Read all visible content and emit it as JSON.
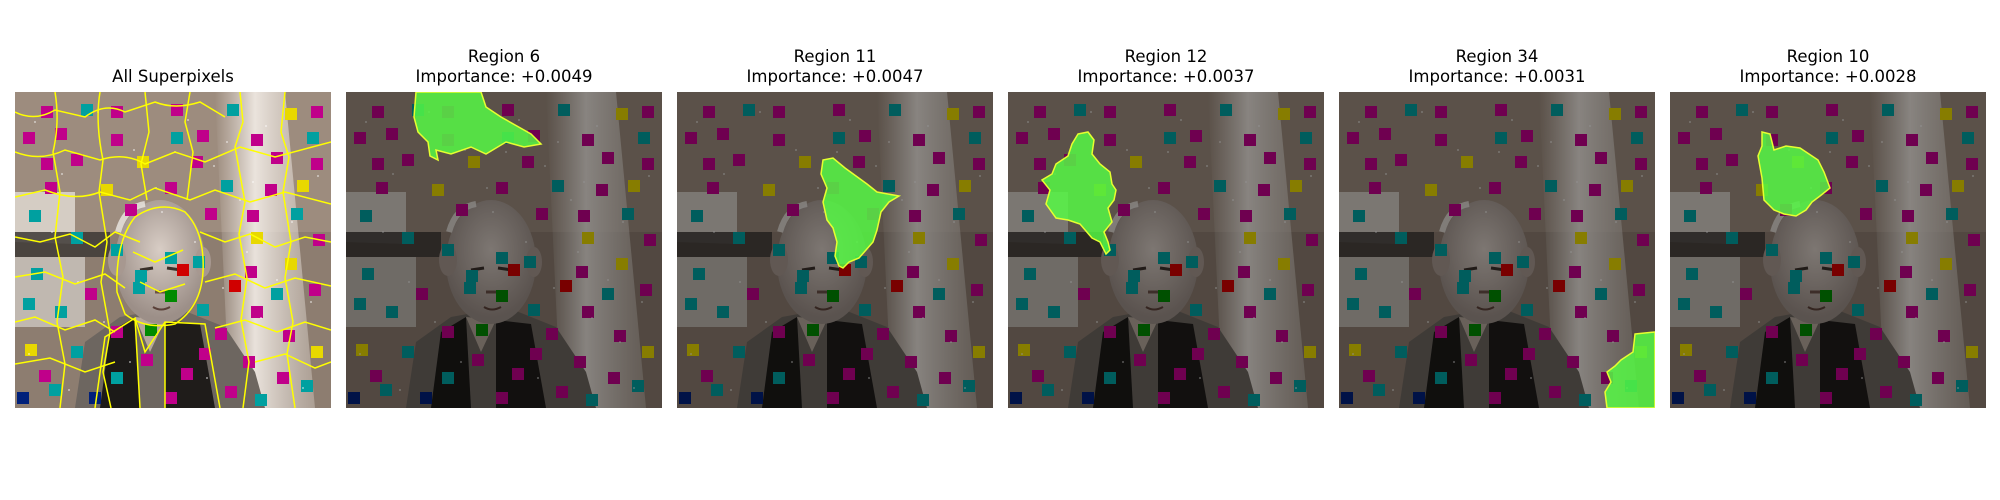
{
  "panels": [
    {
      "title": "",
      "subtitle": "All Superpixels",
      "highlight": "all",
      "highlight_color": "#ffff00"
    },
    {
      "title": "Region 6",
      "subtitle": "Importance: +0.0049",
      "highlight": "region-6",
      "highlight_color": "#55ff44"
    },
    {
      "title": "Region 11",
      "subtitle": "Importance: +0.0047",
      "highlight": "region-11",
      "highlight_color": "#55ff44"
    },
    {
      "title": "Region 12",
      "subtitle": "Importance: +0.0037",
      "highlight": "region-12",
      "highlight_color": "#55ff44"
    },
    {
      "title": "Region 34",
      "subtitle": "Importance: +0.0031",
      "highlight": "region-34",
      "highlight_color": "#55ff44"
    },
    {
      "title": "Region 10",
      "subtitle": "Importance: +0.0028",
      "highlight": "region-10",
      "highlight_color": "#55ff44"
    }
  ],
  "colors": {
    "boundary": "#ffff00",
    "mask_fill": "#55ff44",
    "patch_magenta": "#c0008a",
    "patch_teal": "#00a0a0",
    "patch_yellow": "#e8d800",
    "patch_red": "#d00000",
    "patch_green": "#008a00",
    "patch_navy": "#00207a"
  }
}
